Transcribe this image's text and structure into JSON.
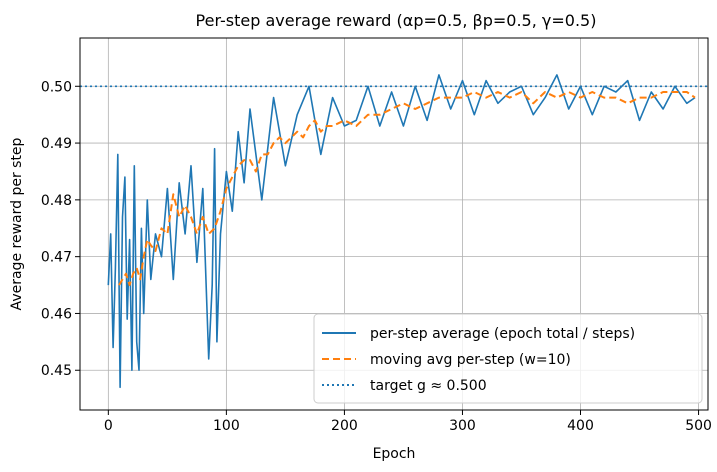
{
  "chart_data": {
    "type": "line",
    "title": "Per-step average reward (αp=0.5, βp=0.5, γ=0.5)",
    "xlabel": "Epoch",
    "ylabel": "Average reward per step",
    "xlim": [
      -24,
      508
    ],
    "ylim": [
      0.443,
      0.5085
    ],
    "xticks": [
      0,
      100,
      200,
      300,
      400,
      500
    ],
    "xtick_labels": [
      "0",
      "100",
      "200",
      "300",
      "400",
      "500"
    ],
    "yticks": [
      0.45,
      0.46,
      0.47,
      0.48,
      0.49,
      0.5
    ],
    "ytick_labels": [
      "0.45",
      "0.46",
      "0.47",
      "0.48",
      "0.49",
      "0.50"
    ],
    "grid": true,
    "legend_position": "lower-right",
    "series": [
      {
        "name": "per-step average (epoch total / steps)",
        "style": "solid",
        "color": "#1f77b4",
        "x": [
          0,
          2,
          4,
          6,
          8,
          10,
          12,
          14,
          16,
          18,
          20,
          22,
          24,
          26,
          28,
          30,
          33,
          36,
          40,
          45,
          50,
          55,
          60,
          65,
          70,
          75,
          80,
          85,
          88,
          90,
          92,
          95,
          100,
          105,
          110,
          115,
          120,
          130,
          140,
          150,
          160,
          170,
          180,
          190,
          200,
          210,
          220,
          230,
          240,
          250,
          260,
          270,
          280,
          290,
          300,
          310,
          320,
          330,
          340,
          350,
          360,
          370,
          380,
          390,
          400,
          410,
          420,
          430,
          440,
          450,
          460,
          470,
          480,
          490,
          497
        ],
        "y": [
          0.465,
          0.474,
          0.454,
          0.468,
          0.488,
          0.447,
          0.477,
          0.484,
          0.459,
          0.473,
          0.45,
          0.486,
          0.455,
          0.45,
          0.475,
          0.46,
          0.48,
          0.466,
          0.474,
          0.47,
          0.482,
          0.466,
          0.483,
          0.474,
          0.486,
          0.469,
          0.482,
          0.452,
          0.465,
          0.489,
          0.455,
          0.474,
          0.485,
          0.478,
          0.492,
          0.483,
          0.496,
          0.48,
          0.498,
          0.486,
          0.495,
          0.5,
          0.488,
          0.498,
          0.493,
          0.494,
          0.5,
          0.493,
          0.499,
          0.493,
          0.5,
          0.494,
          0.502,
          0.496,
          0.501,
          0.495,
          0.501,
          0.497,
          0.499,
          0.5,
          0.495,
          0.498,
          0.502,
          0.496,
          0.5,
          0.495,
          0.5,
          0.499,
          0.501,
          0.494,
          0.499,
          0.496,
          0.5,
          0.497,
          0.498
        ]
      },
      {
        "name": "moving avg per-step (w=10)",
        "style": "dashed",
        "color": "#ff7f0e",
        "x": [
          9,
          12,
          15,
          18,
          21,
          24,
          27,
          30,
          33,
          36,
          40,
          45,
          50,
          55,
          60,
          65,
          70,
          75,
          80,
          85,
          90,
          95,
          100,
          105,
          110,
          115,
          120,
          125,
          130,
          135,
          140,
          145,
          150,
          155,
          160,
          165,
          170,
          175,
          180,
          185,
          190,
          200,
          210,
          220,
          230,
          240,
          250,
          260,
          270,
          280,
          290,
          300,
          310,
          320,
          330,
          340,
          350,
          360,
          370,
          380,
          390,
          400,
          410,
          420,
          430,
          440,
          450,
          460,
          470,
          480,
          490,
          497
        ],
        "y": [
          0.465,
          0.466,
          0.467,
          0.465,
          0.467,
          0.468,
          0.466,
          0.47,
          0.473,
          0.472,
          0.471,
          0.475,
          0.474,
          0.481,
          0.477,
          0.479,
          0.477,
          0.474,
          0.477,
          0.474,
          0.475,
          0.478,
          0.482,
          0.484,
          0.486,
          0.487,
          0.487,
          0.485,
          0.488,
          0.488,
          0.49,
          0.491,
          0.49,
          0.491,
          0.492,
          0.491,
          0.493,
          0.494,
          0.492,
          0.493,
          0.493,
          0.494,
          0.493,
          0.495,
          0.495,
          0.496,
          0.497,
          0.496,
          0.497,
          0.498,
          0.498,
          0.498,
          0.499,
          0.498,
          0.499,
          0.498,
          0.499,
          0.497,
          0.499,
          0.498,
          0.499,
          0.498,
          0.499,
          0.498,
          0.498,
          0.497,
          0.498,
          0.498,
          0.499,
          0.499,
          0.499,
          0.498
        ]
      },
      {
        "name": "target g ≈ 0.500",
        "style": "dotted",
        "color": "#1f77b4",
        "y_const": 0.5
      }
    ]
  }
}
